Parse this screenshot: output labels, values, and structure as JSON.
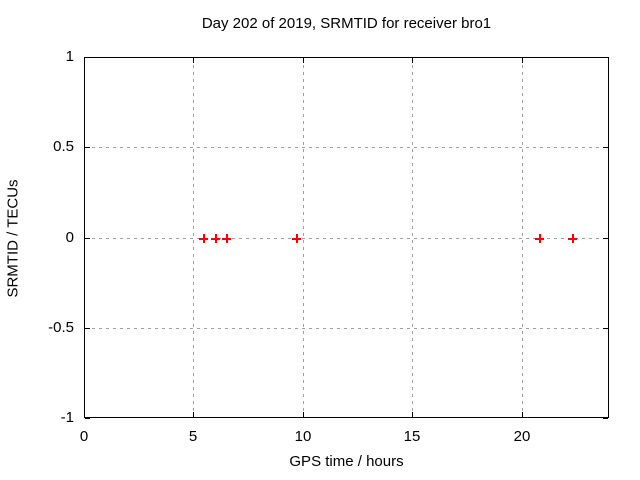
{
  "window": {
    "background": "#ffffff"
  },
  "chart_data": {
    "type": "scatter",
    "title": "Day 202 of 2019, SRMTID for receiver bro1",
    "xlabel": "GPS time / hours",
    "ylabel": "SRMTID / TECUs",
    "xlim": [
      0,
      24
    ],
    "ylim": [
      -1,
      1
    ],
    "grid": true,
    "legend": "none",
    "xticks": [
      {
        "value": 0,
        "label": "0"
      },
      {
        "value": 5,
        "label": "5"
      },
      {
        "value": 10,
        "label": "10"
      },
      {
        "value": 15,
        "label": "15"
      },
      {
        "value": 20,
        "label": "20"
      }
    ],
    "yticks": [
      {
        "value": -1,
        "label": "-1"
      },
      {
        "value": -0.5,
        "label": "-0.5"
      },
      {
        "value": 0,
        "label": "0"
      },
      {
        "value": 0.5,
        "label": "0.5"
      },
      {
        "value": 1,
        "label": "1"
      }
    ],
    "series": [
      {
        "name": "SRMTID",
        "marker": "plus",
        "color": "#ff0000",
        "points": [
          {
            "x": 5.43,
            "y": 0
          },
          {
            "x": 5.97,
            "y": 0
          },
          {
            "x": 6.48,
            "y": 0
          },
          {
            "x": 9.7,
            "y": 0
          },
          {
            "x": 20.79,
            "y": 0
          },
          {
            "x": 22.29,
            "y": 0
          }
        ]
      }
    ],
    "colors": {
      "grid": "#a0a0a0",
      "border": "#000000",
      "text": "#000000",
      "background": "#ffffff"
    }
  }
}
